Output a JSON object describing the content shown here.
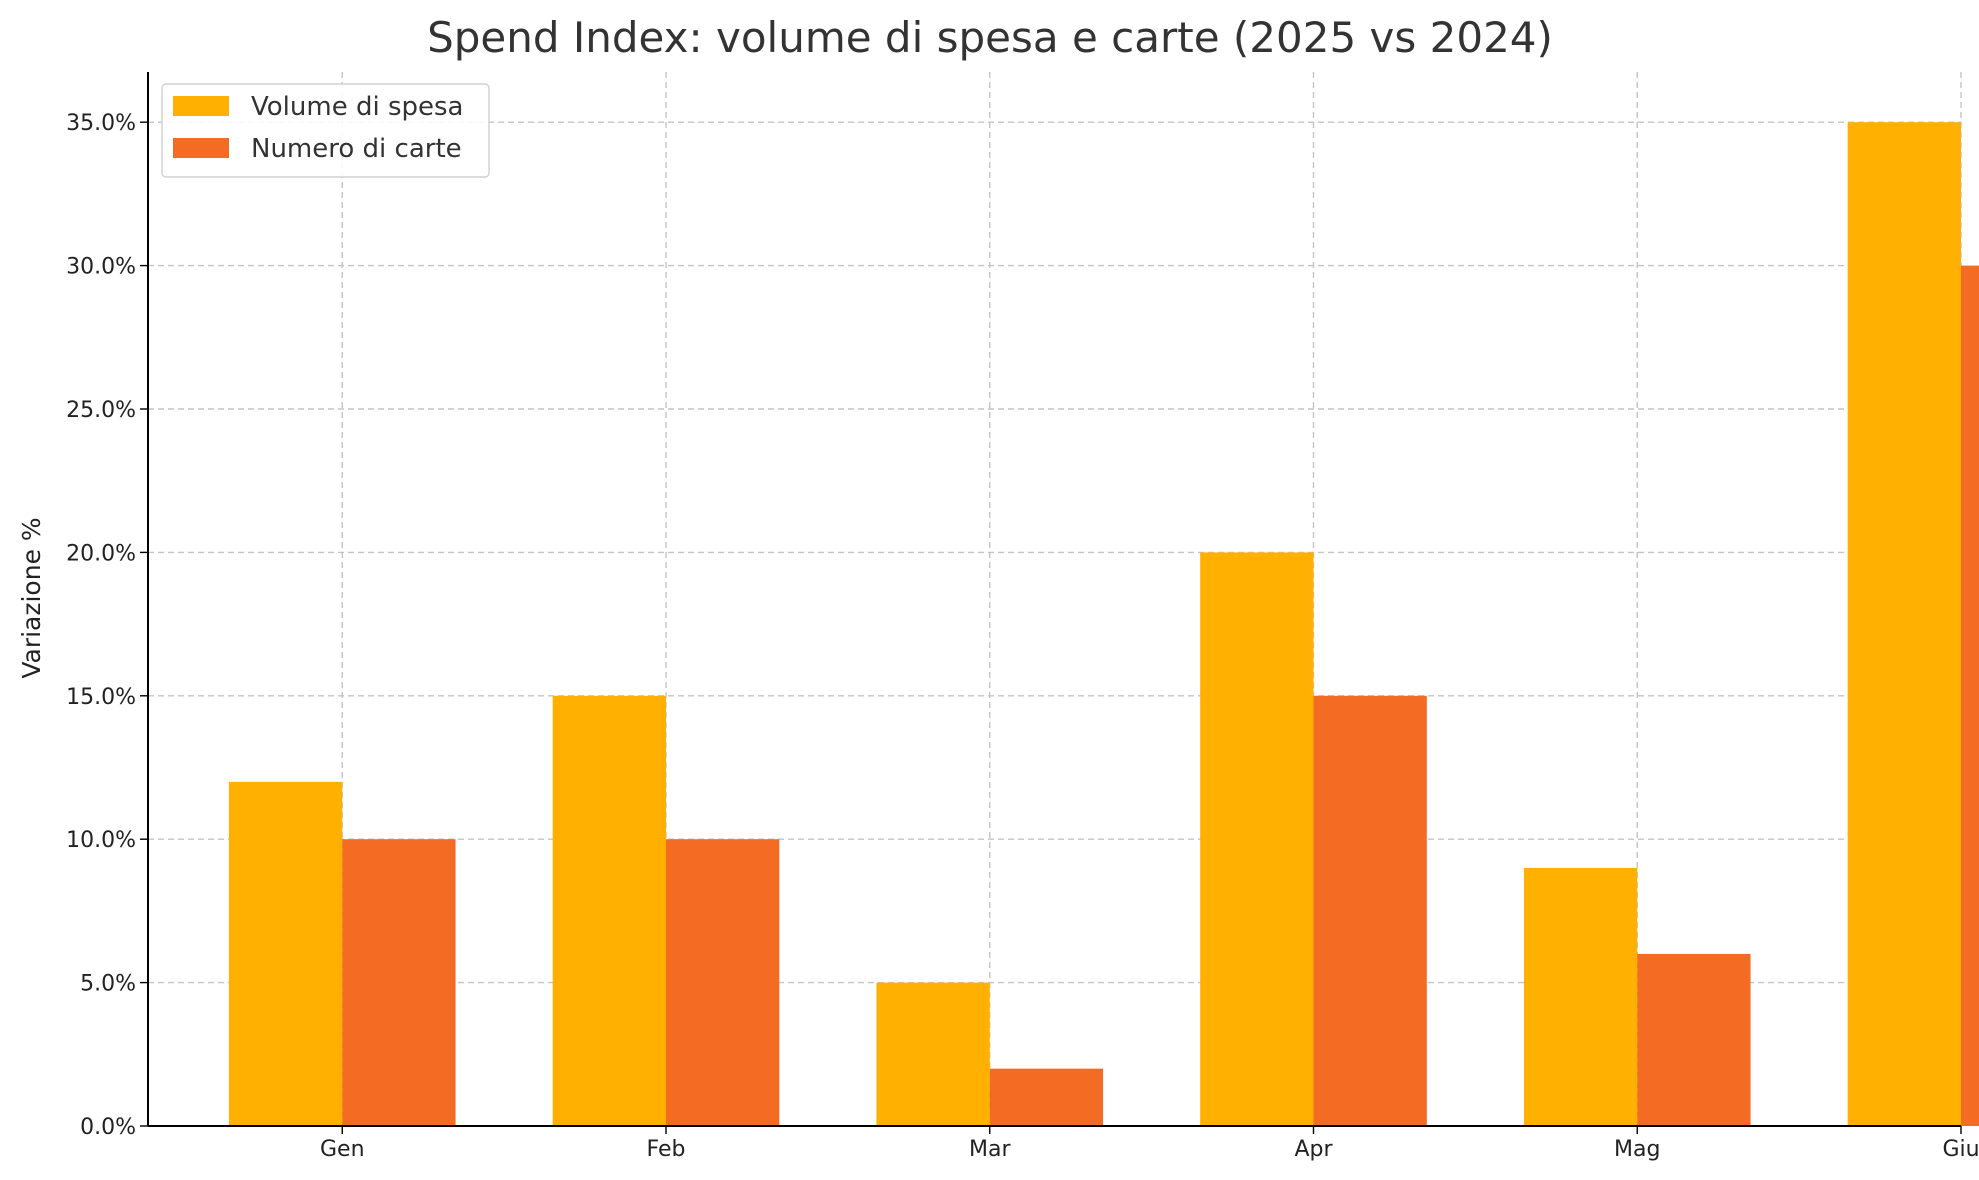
{
  "chart_data": {
    "type": "bar",
    "title": "Spend Index: volume di spesa e carte (2025 vs 2024)",
    "xlabel": "",
    "ylabel": "Variazione %",
    "categories": [
      "Gen",
      "Feb",
      "Mar",
      "Apr",
      "Mag",
      "Giu"
    ],
    "series": [
      {
        "name": "Volume di spesa",
        "color": "#FFB000",
        "values": [
          12,
          15,
          5,
          20,
          9,
          35
        ]
      },
      {
        "name": "Numero di carte",
        "color": "#F46B23",
        "values": [
          10,
          10,
          2,
          15,
          6,
          30
        ]
      }
    ],
    "ylim": [
      0,
      36.75
    ],
    "yticks": [
      0,
      5,
      10,
      15,
      20,
      25,
      30,
      35
    ],
    "ytick_labels": [
      "0.0%",
      "5.0%",
      "10.0%",
      "15.0%",
      "20.0%",
      "25.0%",
      "30.0%",
      "35.0%"
    ],
    "grid": true,
    "legend_position": "top-left"
  }
}
